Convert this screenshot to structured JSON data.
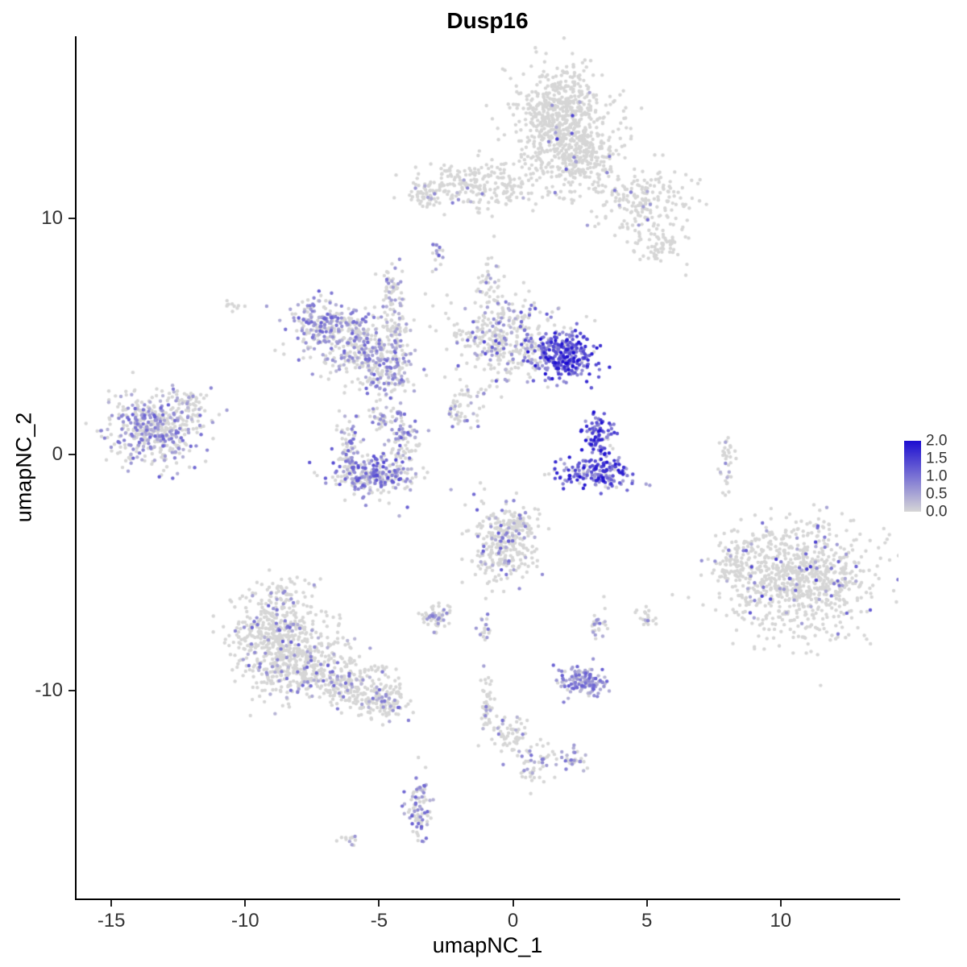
{
  "chart_data": {
    "type": "scatter",
    "title": "Dusp16",
    "xlabel": "umapNC_1",
    "ylabel": "umapNC_2",
    "xlim": [
      -16.3,
      14.4
    ],
    "ylim": [
      -18.8,
      17.7
    ],
    "x_ticks": [
      -15,
      -10,
      -5,
      0,
      5,
      10
    ],
    "y_ticks": [
      10,
      0,
      -10
    ],
    "grid": false,
    "point_radius": 2.2,
    "seed": 7,
    "colors": {
      "low": "#d6d6d6",
      "high": "#1c0dd1",
      "background": "#ffffff",
      "axis": "#000000"
    },
    "legend": {
      "position": "right",
      "min": 0.0,
      "max": 2.0,
      "tick_labels": [
        "2.0",
        "1.5",
        "1.0",
        "0.5",
        "0.0"
      ]
    },
    "clusters": [
      {
        "name": "top-blob-main",
        "n": 650,
        "cx": 1.8,
        "cy": 14.3,
        "sx": 0.85,
        "sy": 1.1,
        "p": 0.02,
        "vmin": 0.4,
        "vmax": 1.6
      },
      {
        "name": "top-blob-lower",
        "n": 200,
        "cx": 2.6,
        "cy": 12.6,
        "sx": 0.8,
        "sy": 0.6,
        "p": 0.03,
        "vmin": 0.3,
        "vmax": 1.2
      },
      {
        "name": "top-band",
        "n": 260,
        "cx": -1.2,
        "cy": 11.4,
        "sx": 1.5,
        "sy": 0.45,
        "p": 0.04,
        "vmin": 0.3,
        "vmax": 1.3
      },
      {
        "name": "top-band-left-tip",
        "n": 40,
        "cx": -3.3,
        "cy": 11.0,
        "sx": 0.3,
        "sy": 0.3,
        "p": 0.05,
        "vmin": 0.3,
        "vmax": 1.0
      },
      {
        "name": "top-right-arm",
        "n": 200,
        "cx": 4.8,
        "cy": 10.6,
        "sx": 0.9,
        "sy": 0.8,
        "p": 0.06,
        "vmin": 0.4,
        "vmax": 1.4
      },
      {
        "name": "top-right-arm-low",
        "n": 60,
        "cx": 5.6,
        "cy": 8.8,
        "sx": 0.5,
        "sy": 0.4,
        "p": 0.08,
        "vmin": 0.3,
        "vmax": 1.0
      },
      {
        "name": "tiny-dash-upper",
        "n": 16,
        "cx": -2.8,
        "cy": 8.7,
        "sx": 0.12,
        "sy": 0.3,
        "p": 0.4,
        "vmin": 0.4,
        "vmax": 1.2
      },
      {
        "name": "mid-strand-vertical",
        "n": 45,
        "cx": -4.6,
        "cy": 6.9,
        "sx": 0.18,
        "sy": 0.8,
        "p": 0.3,
        "vmin": 0.3,
        "vmax": 1.0
      },
      {
        "name": "midleft-arc-top",
        "n": 220,
        "cx": -6.9,
        "cy": 5.5,
        "sx": 0.75,
        "sy": 0.55,
        "p": 0.5,
        "vmin": 0.3,
        "vmax": 1.2
      },
      {
        "name": "midleft-arc-mid",
        "n": 260,
        "cx": -5.6,
        "cy": 4.5,
        "sx": 0.8,
        "sy": 0.65,
        "p": 0.4,
        "vmin": 0.3,
        "vmax": 1.1
      },
      {
        "name": "midleft-arc-bottom",
        "n": 120,
        "cx": -4.7,
        "cy": 3.3,
        "sx": 0.5,
        "sy": 0.45,
        "p": 0.45,
        "vmin": 0.3,
        "vmax": 1.2
      },
      {
        "name": "midleft-strand",
        "n": 70,
        "cx": -4.3,
        "cy": 5.6,
        "sx": 0.2,
        "sy": 0.9,
        "p": 0.35,
        "vmin": 0.3,
        "vmax": 1.0
      },
      {
        "name": "central-upper",
        "n": 360,
        "cx": -0.3,
        "cy": 4.9,
        "sx": 1.0,
        "sy": 0.9,
        "p": 0.25,
        "vmin": 0.3,
        "vmax": 1.4
      },
      {
        "name": "central-upper-strand",
        "n": 45,
        "cx": -0.8,
        "cy": 7.2,
        "sx": 0.25,
        "sy": 0.8,
        "p": 0.15,
        "vmin": 0.3,
        "vmax": 1.0
      },
      {
        "name": "hot-cluster-right",
        "n": 300,
        "cx": 1.95,
        "cy": 4.2,
        "sx": 0.6,
        "sy": 0.5,
        "p": 0.92,
        "vmin": 0.6,
        "vmax": 2.0
      },
      {
        "name": "left-cluster",
        "n": 460,
        "cx": -13.4,
        "cy": 1.1,
        "sx": 0.85,
        "sy": 0.75,
        "p": 0.38,
        "vmin": 0.3,
        "vmax": 1.2
      },
      {
        "name": "left-cluster-edge",
        "n": 60,
        "cx": -12.2,
        "cy": 2.2,
        "sx": 0.5,
        "sy": 0.3,
        "p": 0.2,
        "vmin": 0.3,
        "vmax": 1.0
      },
      {
        "name": "ucluster-bottom",
        "n": 260,
        "cx": -5.2,
        "cy": -0.9,
        "sx": 0.75,
        "sy": 0.4,
        "p": 0.5,
        "vmin": 0.3,
        "vmax": 1.4
      },
      {
        "name": "ucluster-left-arm",
        "n": 80,
        "cx": -6.1,
        "cy": 0.2,
        "sx": 0.25,
        "sy": 0.6,
        "p": 0.4,
        "vmin": 0.3,
        "vmax": 1.2
      },
      {
        "name": "ucluster-right-arm",
        "n": 90,
        "cx": -4.1,
        "cy": 0.6,
        "sx": 0.3,
        "sy": 0.7,
        "p": 0.45,
        "vmin": 0.3,
        "vmax": 1.3
      },
      {
        "name": "ucluster-hook",
        "n": 40,
        "cx": -4.9,
        "cy": 1.6,
        "sx": 0.4,
        "sy": 0.25,
        "p": 0.3,
        "vmin": 0.3,
        "vmax": 1.0
      },
      {
        "name": "small-strand-center",
        "n": 30,
        "cx": -1.6,
        "cy": 2.0,
        "sx": 0.3,
        "sy": 0.5,
        "p": 0.3,
        "vmin": 0.3,
        "vmax": 1.0
      },
      {
        "name": "mid-dot-strand",
        "n": 25,
        "cx": -2.3,
        "cy": 1.8,
        "sx": 0.2,
        "sy": 0.35,
        "p": 0.35,
        "vmin": 0.3,
        "vmax": 1.0
      },
      {
        "name": "hot-small-top",
        "n": 90,
        "cx": 3.2,
        "cy": 0.8,
        "sx": 0.28,
        "sy": 0.45,
        "p": 0.9,
        "vmin": 0.6,
        "vmax": 2.0
      },
      {
        "name": "hot-arc-bottom",
        "n": 170,
        "cx": 3.2,
        "cy": -0.8,
        "sx": 0.75,
        "sy": 0.33,
        "p": 0.85,
        "vmin": 0.5,
        "vmax": 2.0
      },
      {
        "name": "right-strip",
        "n": 35,
        "cx": 8.0,
        "cy": -0.3,
        "sx": 0.15,
        "sy": 0.7,
        "p": 0.05,
        "vmin": 0.3,
        "vmax": 1.0
      },
      {
        "name": "right-large",
        "n": 850,
        "cx": 10.6,
        "cy": -5.2,
        "sx": 1.35,
        "sy": 1.25,
        "p": 0.08,
        "vmin": 0.4,
        "vmax": 1.5
      },
      {
        "name": "right-large-left-tip",
        "n": 80,
        "cx": 8.3,
        "cy": -4.6,
        "sx": 0.45,
        "sy": 0.6,
        "p": 0.1,
        "vmin": 0.3,
        "vmax": 1.2
      },
      {
        "name": "central-bottom",
        "n": 280,
        "cx": -0.4,
        "cy": -3.9,
        "sx": 0.6,
        "sy": 0.85,
        "p": 0.15,
        "vmin": 0.3,
        "vmax": 1.3
      },
      {
        "name": "central-bottom-top",
        "n": 60,
        "cx": 0.1,
        "cy": -2.9,
        "sx": 0.35,
        "sy": 0.35,
        "p": 0.15,
        "vmin": 0.3,
        "vmax": 1.0
      },
      {
        "name": "bottomleft-upper",
        "n": 300,
        "cx": -8.8,
        "cy": -7.3,
        "sx": 0.85,
        "sy": 0.75,
        "p": 0.12,
        "vmin": 0.3,
        "vmax": 1.2
      },
      {
        "name": "bottomleft-main",
        "n": 420,
        "cx": -8.2,
        "cy": -8.8,
        "sx": 1.0,
        "sy": 0.8,
        "p": 0.12,
        "vmin": 0.3,
        "vmax": 1.2
      },
      {
        "name": "bottomleft-tail",
        "n": 200,
        "cx": -6.1,
        "cy": -9.7,
        "sx": 0.85,
        "sy": 0.5,
        "p": 0.1,
        "vmin": 0.3,
        "vmax": 1.1
      },
      {
        "name": "bottomleft-tail-tip",
        "n": 110,
        "cx": -4.8,
        "cy": -10.5,
        "sx": 0.5,
        "sy": 0.35,
        "p": 0.15,
        "vmin": 0.3,
        "vmax": 1.1
      },
      {
        "name": "bottomleft-wisp",
        "n": 50,
        "cx": -8.7,
        "cy": -5.8,
        "sx": 0.5,
        "sy": 0.4,
        "p": 0.1,
        "vmin": 0.3,
        "vmax": 1.0
      },
      {
        "name": "small-mid-bottom",
        "n": 60,
        "cx": -2.9,
        "cy": -6.9,
        "sx": 0.3,
        "sy": 0.3,
        "p": 0.3,
        "vmin": 0.3,
        "vmax": 1.0
      },
      {
        "name": "tiny-pair",
        "n": 18,
        "cx": -1.1,
        "cy": -7.4,
        "sx": 0.15,
        "sy": 0.25,
        "p": 0.3,
        "vmin": 0.3,
        "vmax": 1.0
      },
      {
        "name": "tiny-right-1",
        "n": 25,
        "cx": 3.2,
        "cy": -7.2,
        "sx": 0.15,
        "sy": 0.4,
        "p": 0.4,
        "vmin": 0.3,
        "vmax": 1.0
      },
      {
        "name": "tiny-right-2",
        "n": 20,
        "cx": 5.0,
        "cy": -6.9,
        "sx": 0.2,
        "sy": 0.3,
        "p": 0.1,
        "vmin": 0.3,
        "vmax": 1.0
      },
      {
        "name": "hot-bottom-blob",
        "n": 140,
        "cx": 2.6,
        "cy": -9.6,
        "sx": 0.5,
        "sy": 0.3,
        "p": 0.8,
        "vmin": 0.3,
        "vmax": 1.2
      },
      {
        "name": "thin-vertical-bottom",
        "n": 50,
        "cx": -1.0,
        "cy": -10.5,
        "sx": 0.12,
        "sy": 0.6,
        "p": 0.15,
        "vmin": 0.3,
        "vmax": 1.0
      },
      {
        "name": "tail-diag-1",
        "n": 60,
        "cx": 0.0,
        "cy": -11.9,
        "sx": 0.35,
        "sy": 0.45,
        "p": 0.15,
        "vmin": 0.3,
        "vmax": 1.0
      },
      {
        "name": "tail-diag-2",
        "n": 50,
        "cx": 0.9,
        "cy": -13.0,
        "sx": 0.35,
        "sy": 0.45,
        "p": 0.2,
        "vmin": 0.3,
        "vmax": 1.0
      },
      {
        "name": "tail-side-dots",
        "n": 30,
        "cx": 2.3,
        "cy": -12.9,
        "sx": 0.25,
        "sy": 0.3,
        "p": 0.6,
        "vmin": 0.3,
        "vmax": 1.0
      },
      {
        "name": "bottom-vertical",
        "n": 90,
        "cx": -3.5,
        "cy": -15.1,
        "sx": 0.22,
        "sy": 0.75,
        "p": 0.5,
        "vmin": 0.3,
        "vmax": 1.2
      },
      {
        "name": "bottom-tiny",
        "n": 12,
        "cx": -6.1,
        "cy": -16.3,
        "sx": 0.2,
        "sy": 0.15,
        "p": 0.3,
        "vmin": 0.3,
        "vmax": 1.0
      },
      {
        "name": "left-dash",
        "n": 10,
        "cx": -10.5,
        "cy": 6.3,
        "sx": 0.25,
        "sy": 0.1,
        "p": 0.05,
        "vmin": 0.3,
        "vmax": 1.0
      }
    ]
  }
}
